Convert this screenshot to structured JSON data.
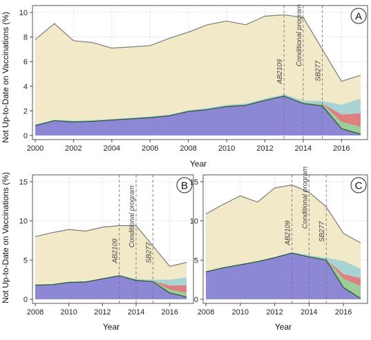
{
  "ylabel": "Not Up-to-Date on Vaccinations (%)",
  "xlabel": "Year",
  "layer_colors": {
    "personal": "#f2e9c8",
    "not_accounted": "#a9d2d3",
    "medical": "#de7f80",
    "conditional": "#9cce9c",
    "overdue": "#8c88d6"
  },
  "line_colors": {
    "total": "#7a7a7a",
    "boundary": "#2d5a2d"
  },
  "chart_data": [
    {
      "type": "area",
      "panel": "A",
      "xlim": [
        2000,
        2017
      ],
      "ylim": [
        0,
        10
      ],
      "xticks": [
        2000,
        2002,
        2004,
        2006,
        2008,
        2010,
        2012,
        2014,
        2016
      ],
      "yticks": [
        0,
        2,
        4,
        6,
        8,
        10
      ],
      "annotations": [
        {
          "x": 2013,
          "label": "AB2109"
        },
        {
          "x": 2014,
          "label": "Conditional program"
        },
        {
          "x": 2015,
          "label": "SB277"
        }
      ],
      "x": [
        2000,
        2001,
        2002,
        2003,
        2004,
        2005,
        2006,
        2007,
        2008,
        2009,
        2010,
        2011,
        2012,
        2013,
        2014,
        2015,
        2016,
        2017
      ],
      "series": [
        {
          "key": "overdue",
          "values": [
            0.8,
            1.2,
            1.1,
            1.15,
            1.25,
            1.35,
            1.45,
            1.6,
            1.95,
            2.1,
            2.35,
            2.45,
            2.85,
            3.2,
            2.6,
            2.4,
            0.55,
            0.1
          ]
        },
        {
          "key": "conditional",
          "values": [
            0,
            0,
            0,
            0,
            0,
            0,
            0,
            0,
            0,
            0,
            0,
            0,
            0,
            0,
            0.1,
            0.2,
            0.55,
            0.6
          ]
        },
        {
          "key": "medical",
          "values": [
            0,
            0,
            0,
            0,
            0,
            0,
            0,
            0,
            0,
            0,
            0,
            0,
            0,
            0,
            0,
            0,
            0.6,
            1.1
          ]
        },
        {
          "key": "not_accounted",
          "values": [
            0.1,
            0.1,
            0.1,
            0.1,
            0.1,
            0.1,
            0.1,
            0.1,
            0.1,
            0.15,
            0.15,
            0.15,
            0.15,
            0.15,
            0.15,
            0.2,
            0.8,
            1.2
          ]
        },
        {
          "key": "personal",
          "values": [
            6.9,
            7.8,
            6.5,
            6.3,
            5.75,
            5.75,
            5.75,
            6.2,
            6.35,
            6.75,
            6.8,
            6.4,
            6.7,
            6.45,
            6.75,
            4.2,
            1.9,
            1.9
          ]
        }
      ]
    },
    {
      "type": "area",
      "panel": "B",
      "xlim": [
        2008,
        2017
      ],
      "ylim": [
        0,
        15
      ],
      "xticks": [
        2008,
        2010,
        2012,
        2014,
        2016
      ],
      "yticks": [
        0,
        5,
        10,
        15
      ],
      "annotations": [
        {
          "x": 2013,
          "label": "AB2109"
        },
        {
          "x": 2014,
          "label": "Conditional program"
        },
        {
          "x": 2015,
          "label": "SB277"
        }
      ],
      "x": [
        2008,
        2009,
        2010,
        2011,
        2012,
        2013,
        2014,
        2015,
        2016,
        2017
      ],
      "series": [
        {
          "key": "overdue",
          "values": [
            1.8,
            1.85,
            2.15,
            2.2,
            2.6,
            3.0,
            2.4,
            2.25,
            0.8,
            0.3
          ]
        },
        {
          "key": "conditional",
          "values": [
            0,
            0,
            0,
            0,
            0,
            0,
            0.1,
            0.1,
            0.45,
            0.5
          ]
        },
        {
          "key": "medical",
          "values": [
            0,
            0,
            0,
            0,
            0,
            0,
            0,
            0,
            0.5,
            1.0
          ]
        },
        {
          "key": "not_accounted",
          "values": [
            0.1,
            0.1,
            0.1,
            0.1,
            0.1,
            0.1,
            0.1,
            0.15,
            0.75,
            1.0
          ]
        },
        {
          "key": "personal",
          "values": [
            6.1,
            6.55,
            6.65,
            6.4,
            6.5,
            6.3,
            6.8,
            4.3,
            1.7,
            1.9
          ]
        }
      ]
    },
    {
      "type": "area",
      "panel": "C",
      "xlim": [
        2008,
        2017
      ],
      "ylim": [
        0,
        15
      ],
      "xticks": [
        2008,
        2010,
        2012,
        2014,
        2016
      ],
      "yticks": [
        0,
        5,
        10,
        15
      ],
      "annotations": [
        {
          "x": 2013,
          "label": "AB2109"
        },
        {
          "x": 2014,
          "label": "Conditional program"
        },
        {
          "x": 2015,
          "label": "SB277"
        }
      ],
      "x": [
        2008,
        2009,
        2010,
        2011,
        2012,
        2013,
        2014,
        2015,
        2016,
        2017
      ],
      "series": [
        {
          "key": "overdue",
          "values": [
            3.5,
            4.0,
            4.4,
            4.8,
            5.3,
            5.9,
            5.4,
            5.0,
            1.5,
            0.1
          ]
        },
        {
          "key": "conditional",
          "values": [
            0,
            0,
            0,
            0,
            0,
            0,
            0.1,
            0.1,
            1.1,
            1.6
          ]
        },
        {
          "key": "medical",
          "values": [
            0,
            0,
            0,
            0,
            0,
            0,
            0,
            0,
            0.6,
            1.0
          ]
        },
        {
          "key": "not_accounted",
          "values": [
            0.1,
            0.1,
            0.1,
            0.1,
            0.1,
            0.1,
            0.15,
            0.2,
            1.7,
            1.2
          ]
        },
        {
          "key": "personal",
          "values": [
            7.3,
            8.0,
            8.7,
            7.5,
            8.8,
            8.6,
            8.0,
            6.5,
            3.5,
            3.3
          ]
        }
      ]
    }
  ]
}
